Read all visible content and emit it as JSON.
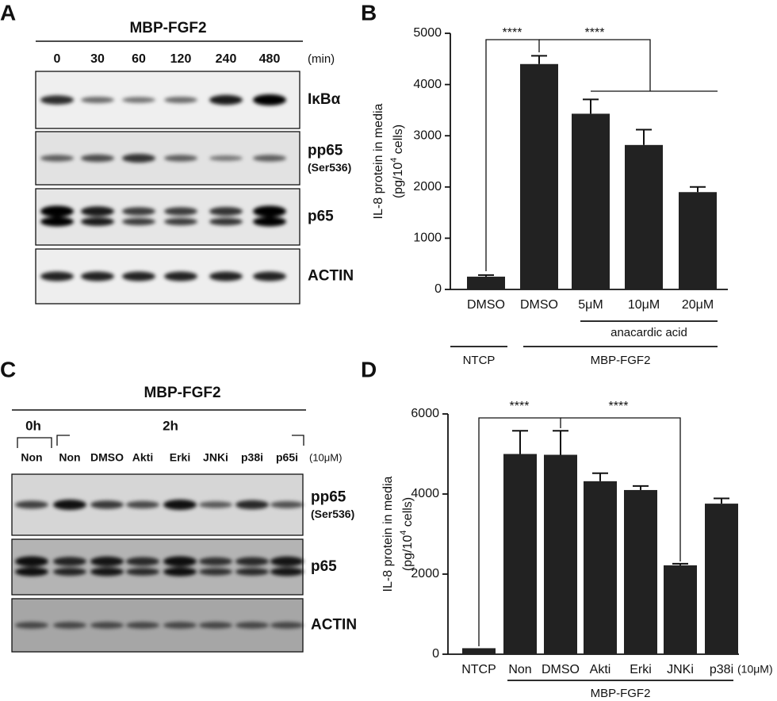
{
  "panels": {
    "A": {
      "label": "A",
      "title": "MBP-FGF2",
      "lanes": [
        "0",
        "30",
        "60",
        "120",
        "240",
        "480"
      ],
      "unit": "(min)",
      "rows": [
        {
          "name": "IκBα"
        },
        {
          "name": "pp65",
          "sub": "(Ser536)"
        },
        {
          "name": "p65"
        },
        {
          "name": "ACTIN"
        }
      ]
    },
    "C": {
      "label": "C",
      "title": "MBP-FGF2",
      "groups": [
        "0h",
        "2h"
      ],
      "lanes": [
        "Non",
        "Non",
        "DMSO",
        "Akti",
        "Erki",
        "JNKi",
        "p38i",
        "p65i"
      ],
      "unit": "(10μM)",
      "rows": [
        {
          "name": "pp65",
          "sub": "(Ser536)"
        },
        {
          "name": "p65"
        },
        {
          "name": "ACTIN"
        }
      ]
    }
  },
  "chart_data": [
    {
      "label": "B",
      "type": "bar",
      "y_label": "IL-8 protein in media",
      "y_unit": {
        "before": "(pg/10",
        "sup": "4",
        "after": " cells)"
      },
      "categories": [
        "DMSO",
        "DMSO",
        "5μM",
        "10μM",
        "20μM"
      ],
      "values": [
        250,
        4400,
        3430,
        2820,
        1900
      ],
      "errors": [
        30,
        160,
        280,
        300,
        100
      ],
      "color": "#222222",
      "ylim": [
        0,
        5000
      ],
      "yticks": [
        0,
        1000,
        2000,
        3000,
        4000,
        5000
      ],
      "annotations": [
        "****",
        "****"
      ],
      "groups": [
        "anacardic acid",
        "NTCP",
        "MBP-FGF2"
      ]
    },
    {
      "label": "D",
      "type": "bar",
      "y_label": "IL-8 protein in media",
      "y_unit": {
        "before": "(pg/10",
        "sup": "4",
        "after": " cells)"
      },
      "categories": [
        "NTCP",
        "Non",
        "DMSO",
        "Akti",
        "Erki",
        "JNKi",
        "p38i"
      ],
      "values": [
        150,
        5000,
        4980,
        4320,
        4100,
        2220,
        3760
      ],
      "errors": [
        0,
        580,
        600,
        200,
        100,
        40,
        130
      ],
      "color": "#222222",
      "ylim": [
        0,
        6000
      ],
      "yticks": [
        0,
        2000,
        4000,
        6000
      ],
      "annotations": [
        "****",
        "****"
      ],
      "note": "(10μM)",
      "groups": [
        "MBP-FGF2"
      ]
    }
  ]
}
